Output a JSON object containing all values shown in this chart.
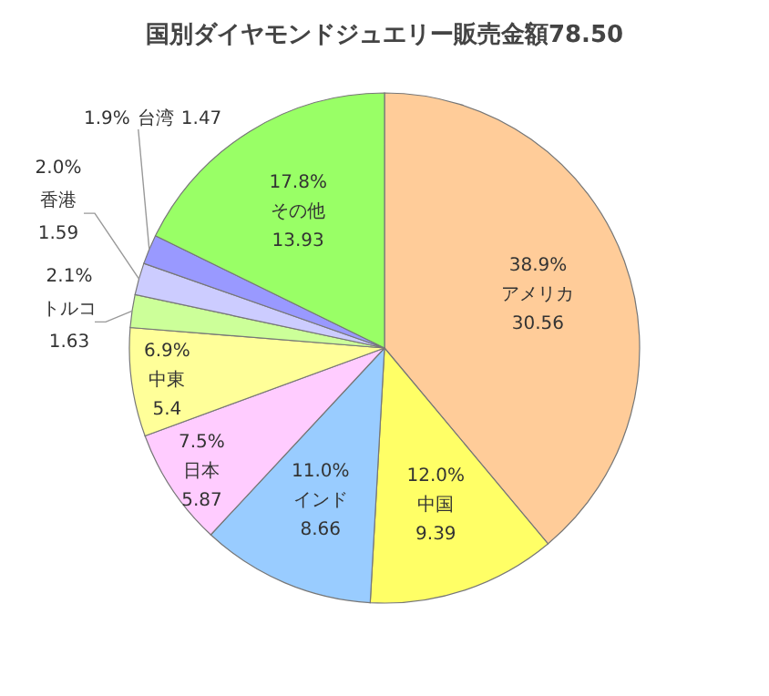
{
  "chart_data": {
    "type": "pie",
    "title": "国別ダイヤモンドジュエリー販売金額78.50",
    "categories": [
      "アメリカ",
      "中国",
      "インド",
      "日本",
      "中東",
      "トルコ",
      "香港",
      "台湾",
      "その他"
    ],
    "values": [
      30.56,
      9.39,
      8.66,
      5.87,
      5.4,
      1.63,
      1.59,
      1.47,
      13.93
    ],
    "data_labels": true,
    "annotations": [
      {
        "text": "38.9%",
        "x": "アメリカ"
      },
      {
        "text": "12.0%",
        "x": "中国"
      },
      {
        "text": "11.0%",
        "x": "インド"
      },
      {
        "text": "7.5%",
        "x": "日本"
      },
      {
        "text": "6.9%",
        "x": "中東"
      },
      {
        "text": "2.1%",
        "x": "トルコ"
      },
      {
        "text": "2.0%",
        "x": "香港"
      },
      {
        "text": "1.9%",
        "x": "台湾"
      },
      {
        "text": "17.8%",
        "x": "その他"
      }
    ],
    "colors": [
      "#ffcc99",
      "#ffff66",
      "#99ccff",
      "#ffccff",
      "#ffff99",
      "#ccff99",
      "#ccccff",
      "#9999ff",
      "#99ff66"
    ]
  }
}
